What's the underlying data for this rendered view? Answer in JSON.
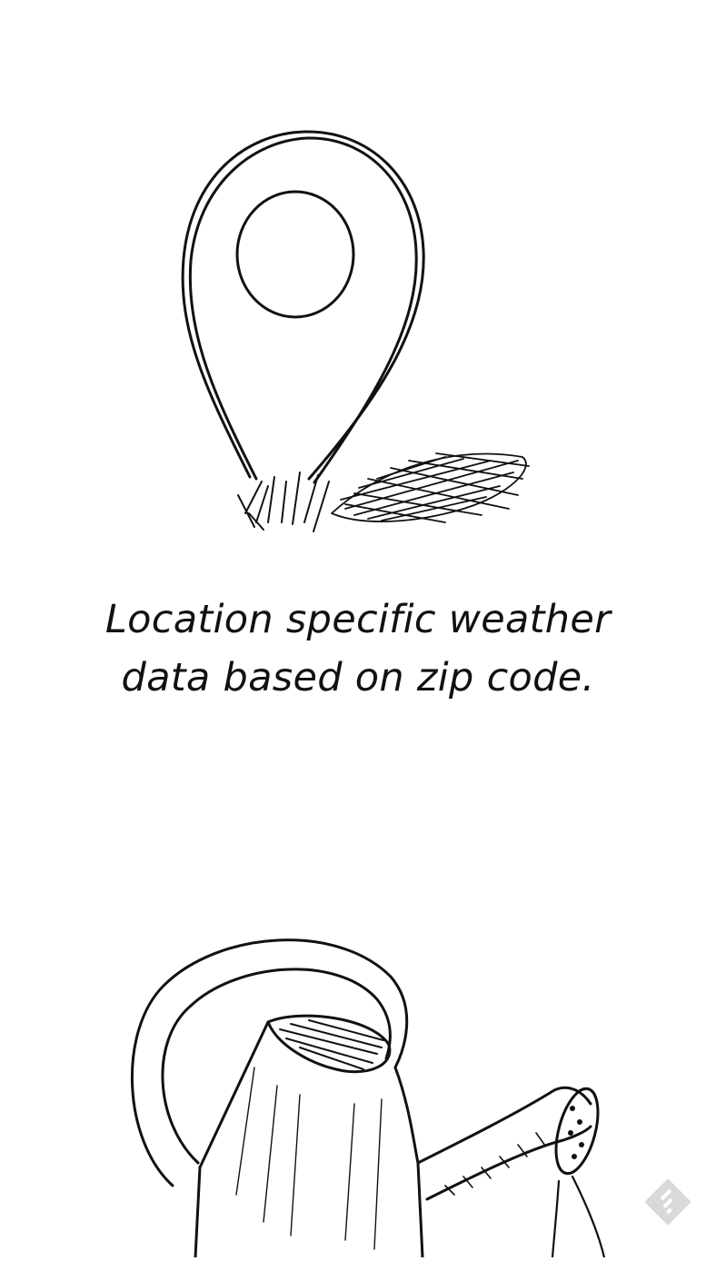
{
  "slide": {
    "caption_line_1": "Location specific weather",
    "caption_line_2": "data based on zip code."
  },
  "illustrations": {
    "top": "location-pin-icon",
    "bottom": "watering-can-icon"
  },
  "floating_button": {
    "icon": "feedly-logo-icon",
    "color": "#d9d9d9"
  },
  "colors": {
    "ink": "#111111",
    "background": "#ffffff"
  }
}
